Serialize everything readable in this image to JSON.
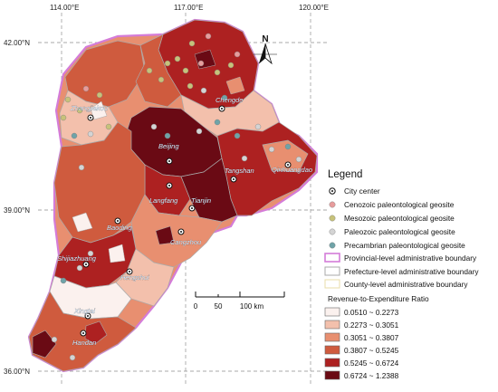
{
  "map": {
    "coordinates": {
      "lon_top": [
        "114.00°E",
        "117.00°E",
        "120.00°E"
      ],
      "lat_left": [
        "42.00°N",
        "39.00°N",
        "36.00°N"
      ]
    },
    "north_arrow": {
      "letter": "N"
    },
    "cities": [
      "Zhangjiakou",
      "Chengde",
      "Beijing",
      "Tangshan",
      "Qinhuangdao",
      "Langfang",
      "Tianjin",
      "Baoding",
      "Cangzhou",
      "Shijiazhuang",
      "Hengshui",
      "Xingtai",
      "Handan"
    ],
    "scale_bar": {
      "labels": [
        "0",
        "50",
        "100 km"
      ]
    },
    "legend": {
      "title": "Legend",
      "symbols": [
        {
          "label": "City center",
          "icon": "city-center-icon"
        },
        {
          "label": "Cenozoic paleontological geosite",
          "color": "#e79c9c"
        },
        {
          "label": "Mesozoic paleontological geosite",
          "color": "#c7c27a"
        },
        {
          "label": "Paleozoic paleontological geosite",
          "color": "#d4d4d4"
        },
        {
          "label": "Precambrian paleontological geosite",
          "color": "#6fa3a8"
        }
      ],
      "boundaries": [
        {
          "label": "Provincial-level administrative boundary",
          "color": "#d47cd8"
        },
        {
          "label": "Prefecture-level administrative boundary",
          "color": "#aaaaaa"
        },
        {
          "label": "County-level administrative boundary",
          "color": "#e8dcaa"
        }
      ],
      "ratio_title": "Revenue-to-Expenditure Ratio",
      "ratio_classes": [
        {
          "label": "0.0510 ~ 0.2273",
          "color": "#fbf1ee"
        },
        {
          "label": "0.2273 ~ 0.3051",
          "color": "#f3c0ac"
        },
        {
          "label": "0.3051 ~ 0.3807",
          "color": "#e88f70"
        },
        {
          "label": "0.3807 ~ 0.5245",
          "color": "#cf5b3e"
        },
        {
          "label": "0.5245 ~ 0.6724",
          "color": "#ad2121"
        },
        {
          "label": "0.6724 ~ 1.2388",
          "color": "#6a0a14"
        }
      ]
    }
  }
}
